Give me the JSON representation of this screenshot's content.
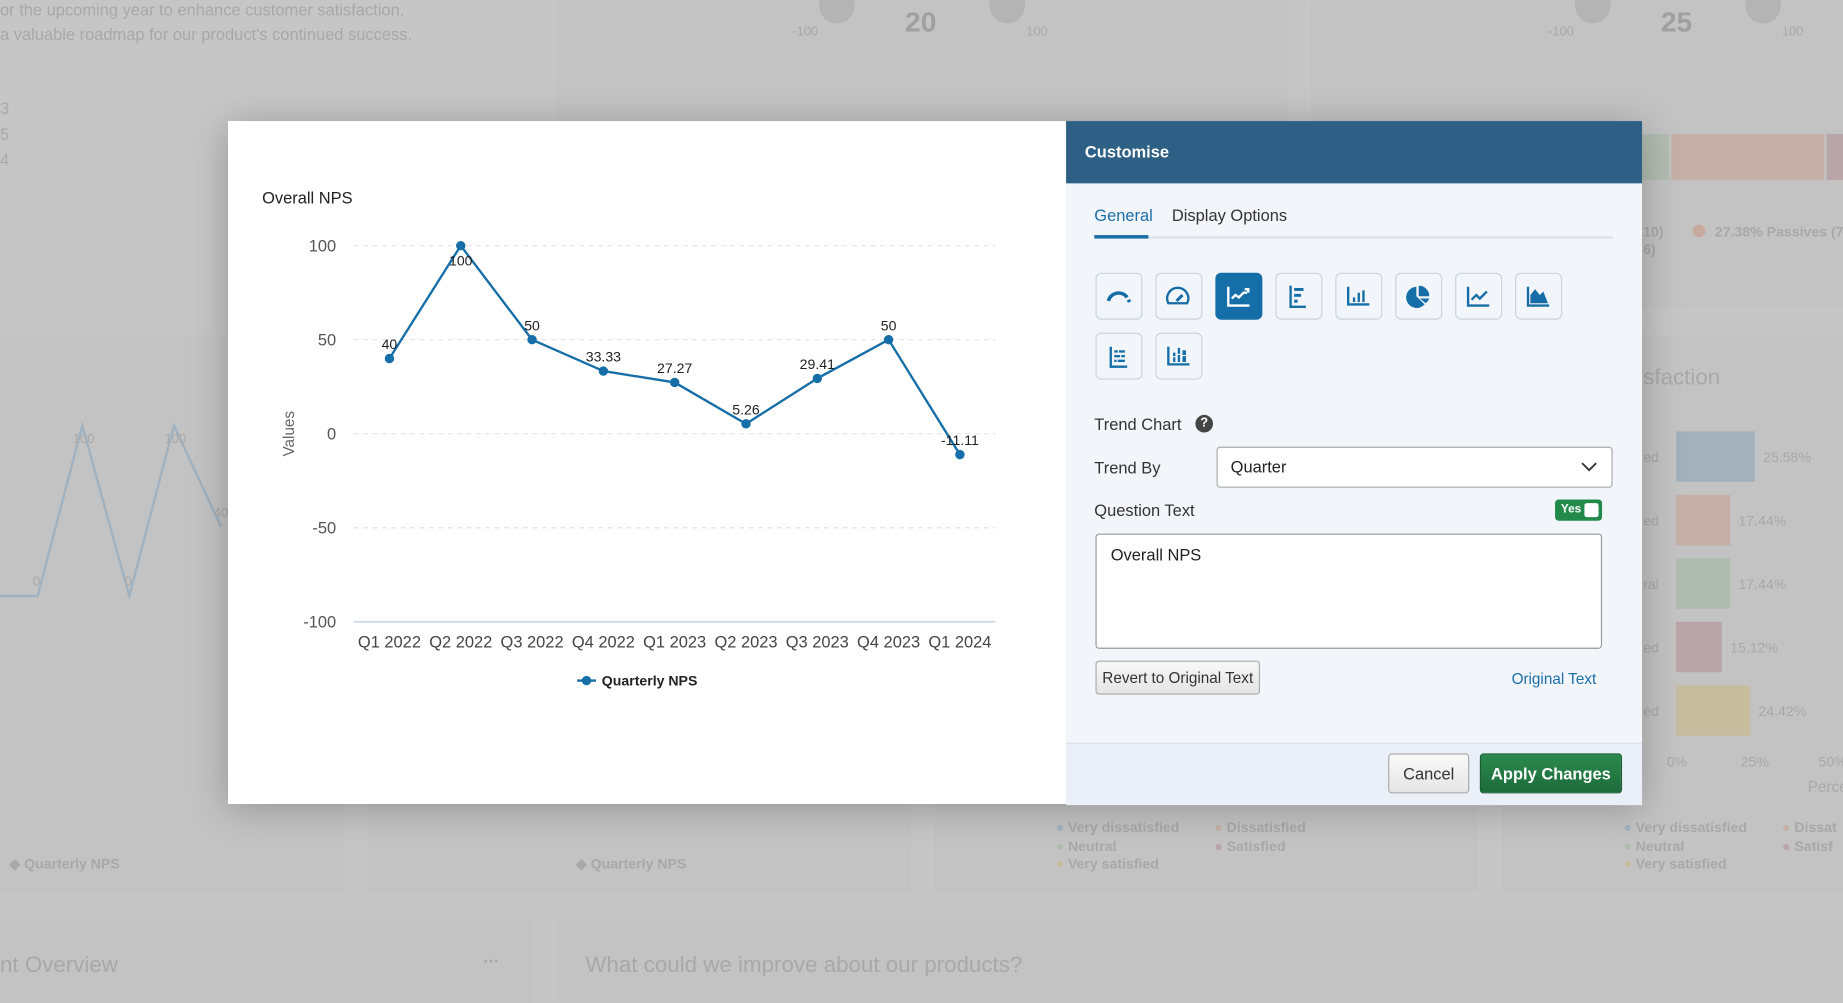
{
  "background": {
    "intro_lines": [
      "or the upcoming year to enhance customer satisfaction.",
      "a valuable roadmap for our product's continued success."
    ],
    "side_numbers": [
      "3",
      "5",
      "4"
    ],
    "gauge1": {
      "value": "20",
      "min": "-100",
      "max": "100"
    },
    "gauge2": {
      "value": "25",
      "min": "-100",
      "max": "100"
    },
    "nps_legend_fragment": "10)",
    "nps_legend_fragment2": "6)",
    "passives_label": "27.38% Passives (7",
    "satisfaction_title_fragment": "sfaction",
    "bar_labels": [
      "ed",
      "ed",
      "ral",
      "ed",
      "ed"
    ],
    "bar_values": [
      "25.58%",
      "17.44%",
      "17.44%",
      "15.12%",
      "24.42%"
    ],
    "bar_axis": [
      "0%",
      "25%",
      "50%"
    ],
    "bar_axis_title_fragment": "Perce",
    "left_mini_labels": [
      "100",
      "100",
      "0",
      "0",
      "40"
    ],
    "quarterly_legend": "Quarterly NPS",
    "satisfaction_legend": [
      "Very dissatisfied",
      "Dissatisfied",
      "Neutral",
      "Satisfied",
      "Very satisfied"
    ],
    "satisfaction_legend_right": [
      "Very dissatisfied",
      "Dissat",
      "Neutral",
      "Satisf",
      "Very satisfied"
    ],
    "overview_title_fragment": "nt Overview",
    "overview_menu": "...",
    "improve_title": "What could we improve about our products?"
  },
  "modal": {
    "header_title": "Customise",
    "tabs": [
      {
        "label": "General",
        "active": true
      },
      {
        "label": "Display Options",
        "active": false
      }
    ],
    "chart_types": [
      {
        "icon": "gauge-arc-icon",
        "active": false
      },
      {
        "icon": "speedometer-icon",
        "active": false
      },
      {
        "icon": "trend-chart-icon",
        "active": true
      },
      {
        "icon": "horizontal-bar-chart-icon",
        "active": false
      },
      {
        "icon": "vertical-bar-chart-icon",
        "active": false
      },
      {
        "icon": "pie-chart-icon",
        "active": false
      },
      {
        "icon": "line-chart-icon",
        "active": false
      },
      {
        "icon": "area-chart-icon",
        "active": false
      },
      {
        "icon": "stacked-horizontal-bar-icon",
        "active": false
      },
      {
        "icon": "stacked-vertical-bar-icon",
        "active": false
      }
    ],
    "section_title": "Trend Chart",
    "trend_by_label": "Trend By",
    "trend_by_value": "Quarter",
    "question_text_label": "Question Text",
    "toggle_label": "Yes",
    "toggle_on": true,
    "question_text_value": "Overall NPS",
    "revert_label": "Revert to Original Text",
    "original_text_link": "Original Text",
    "cancel_label": "Cancel",
    "apply_label": "Apply Changes"
  },
  "colors": {
    "accent": "#156ea7",
    "header": "#2e5f85",
    "apply": "#218a4b",
    "series": "#156ea7"
  },
  "chart_data": {
    "type": "line",
    "title": "Overall NPS",
    "ylabel": "Values",
    "xlabel": "",
    "categories": [
      "Q1 2022",
      "Q2 2022",
      "Q3 2022",
      "Q4 2022",
      "Q1 2023",
      "Q2 2023",
      "Q3 2023",
      "Q4 2023",
      "Q1 2024"
    ],
    "series": [
      {
        "name": "Quarterly NPS",
        "values": [
          40,
          100,
          50,
          33.33,
          27.27,
          5.26,
          29.41,
          50,
          -11.11
        ]
      }
    ],
    "data_labels": [
      "40",
      "100",
      "50",
      "33.33",
      "27.27",
      "5.26",
      "29.41",
      "50",
      "-11.11"
    ],
    "yticks": [
      "100",
      "50",
      "0",
      "-50",
      "-100"
    ],
    "ylim": [
      -100,
      100
    ],
    "grid": true,
    "legend": "bottom"
  }
}
